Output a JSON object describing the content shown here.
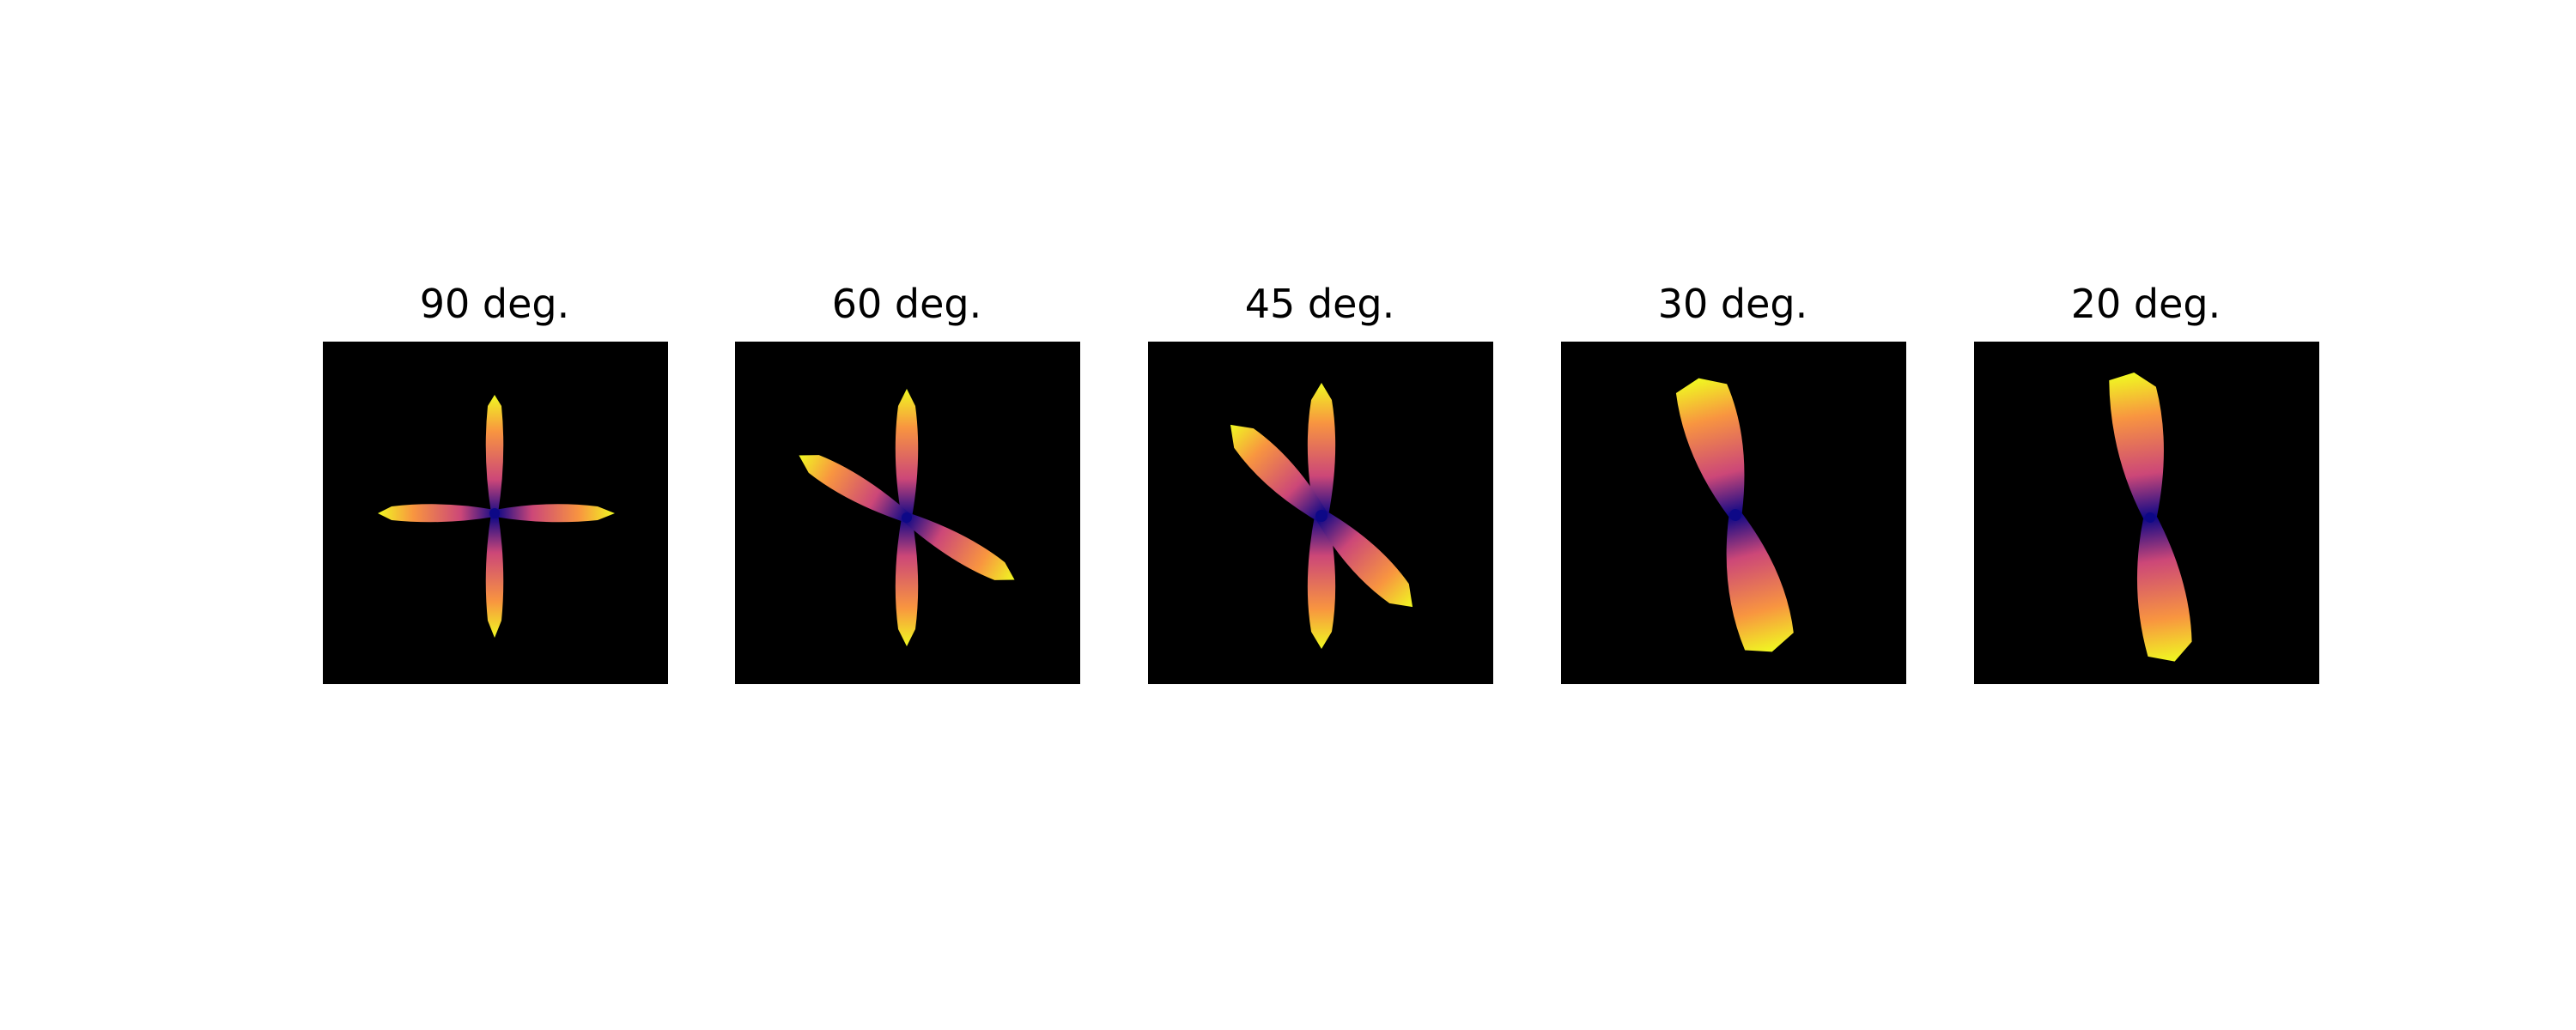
{
  "figure": {
    "background": "#ffffff",
    "panel_background": "#000000",
    "colormap": [
      "#0d0887",
      "#7e03a8",
      "#cc4778",
      "#f89540",
      "#f0f921"
    ],
    "panels": [
      {
        "title": "90 deg.",
        "crossing_angle_deg": 90,
        "lobes": 4
      },
      {
        "title": "60 deg.",
        "crossing_angle_deg": 60,
        "lobes": 4
      },
      {
        "title": "45 deg.",
        "crossing_angle_deg": 45,
        "lobes": 4
      },
      {
        "title": "30 deg.",
        "crossing_angle_deg": 30,
        "lobes": 4
      },
      {
        "title": "20 deg.",
        "crossing_angle_deg": 20,
        "lobes": 2
      }
    ]
  }
}
